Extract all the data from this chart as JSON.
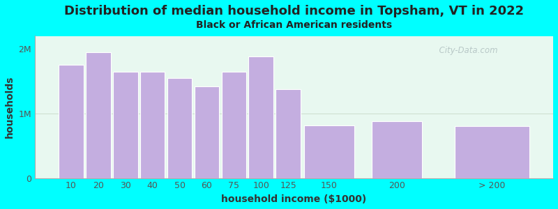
{
  "title": "Distribution of median household income in Topsham, VT in 2022",
  "subtitle": "Black or African American residents",
  "xlabel": "household income ($1000)",
  "ylabel": "households",
  "background_color": "#00ffff",
  "bar_color": "#c4aee0",
  "bar_edge_color": "#ffffff",
  "categories": [
    "10",
    "20",
    "30",
    "40",
    "50",
    "60",
    "75",
    "100",
    "125",
    "150",
    "200",
    "> 200"
  ],
  "values": [
    1.75,
    1.95,
    1.65,
    1.65,
    1.55,
    1.42,
    1.65,
    1.88,
    1.38,
    0.82,
    0.88,
    0.8
  ],
  "bar_widths": [
    1,
    1,
    1,
    1,
    1,
    1,
    1,
    1,
    1,
    2,
    2,
    3
  ],
  "bar_positions": [
    0,
    1,
    2,
    3,
    4,
    5,
    6,
    7,
    8,
    9.5,
    12,
    15.5
  ],
  "ytick_labels": [
    "0",
    "1M",
    "2M"
  ],
  "ylim_max": 2.2,
  "title_fontsize": 13,
  "subtitle_fontsize": 10,
  "axis_label_fontsize": 10,
  "tick_fontsize": 9,
  "title_color": "#222222",
  "subtitle_color": "#222222",
  "watermark": "  City-Data.com"
}
